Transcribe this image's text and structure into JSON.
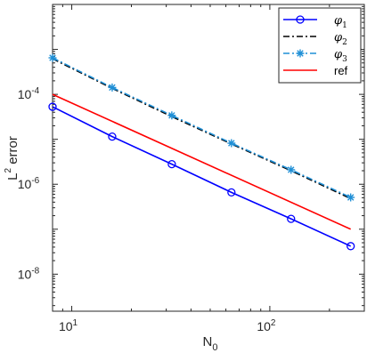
{
  "chart_data": {
    "type": "line",
    "xscale": "log",
    "yscale": "log",
    "xlim": [
      8,
      300
    ],
    "ylim": [
      1.5e-09,
      0.01
    ],
    "xlabel": {
      "main": "N",
      "sub": "0"
    },
    "ylabel": {
      "sup": "2",
      "pre": "L",
      "post": " error"
    },
    "xticks": [
      {
        "value": 10,
        "base": "10",
        "exp": "1"
      },
      {
        "value": 100,
        "base": "10",
        "exp": "2"
      }
    ],
    "yticks": [
      {
        "value": 1e-08,
        "base": "10",
        "exp": "-8"
      },
      {
        "value": 1e-06,
        "base": "10",
        "exp": "-6"
      },
      {
        "value": 0.0001,
        "base": "10",
        "exp": "-4"
      }
    ],
    "grid": false,
    "legend_position": "top-right",
    "series": [
      {
        "name": "φ",
        "name_sub": "1",
        "color": "#0000ff",
        "style": "solid",
        "marker": "circle",
        "x": [
          8,
          16,
          32,
          64,
          128,
          256
        ],
        "y": [
          5.3e-05,
          1.15e-05,
          2.8e-06,
          6.6e-07,
          1.7e-07,
          4.2e-08
        ]
      },
      {
        "name": "φ",
        "name_sub": "2",
        "color": "#000000",
        "style": "dashdot",
        "marker": "none",
        "x": [
          8,
          16,
          32,
          64,
          128,
          256
        ],
        "y": [
          0.00062,
          0.000136,
          3.2e-05,
          7.9e-06,
          2e-06,
          4.8e-07
        ]
      },
      {
        "name": "φ",
        "name_sub": "3",
        "color": "#1f8fd6",
        "style": "dashdot",
        "marker": "asterisk",
        "x": [
          8,
          16,
          32,
          64,
          128,
          256
        ],
        "y": [
          0.00065,
          0.000142,
          3.4e-05,
          8.2e-06,
          2.1e-06,
          5.1e-07
        ]
      },
      {
        "name": "ref",
        "name_sub": "",
        "color": "#ff0000",
        "style": "solid",
        "marker": "none",
        "x": [
          8,
          256
        ],
        "y": [
          0.0001,
          1e-07
        ]
      }
    ]
  }
}
